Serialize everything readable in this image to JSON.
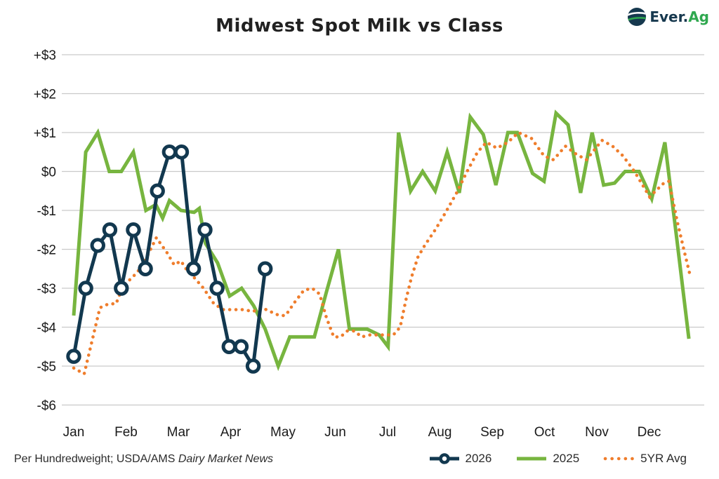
{
  "title": "Midwest Spot Milk vs Class",
  "logo": {
    "brand_prefix": "Ever.",
    "brand_suffix": "Ag"
  },
  "footnote": {
    "plain": "Per Hundredweight; USDA/AMS ",
    "italic": "Dairy Market News"
  },
  "colors": {
    "navy": "#12384f",
    "green": "#77b53f",
    "orange": "#ef7d2c",
    "grid": "#c9c9c9",
    "text": "#1a1a1a",
    "logo_navy": "#16384e",
    "logo_green": "#2fa84f",
    "marker_fill": "#ffffff"
  },
  "chart_data": {
    "type": "line",
    "title": "Midwest Spot Milk vs Class",
    "unit": "US dollars per hundredweight (differential)",
    "grid": "horizontal only",
    "legend_position": "bottom-right",
    "x_axis": {
      "tick_labels": [
        "Jan",
        "Feb",
        "Mar",
        "Apr",
        "May",
        "Jun",
        "Jul",
        "Aug",
        "Sep",
        "Oct",
        "Nov",
        "Dec"
      ],
      "note": "x values below are months, 0 = Jan tick .. 11 = Dec tick"
    },
    "y_axis": {
      "tick_labels": [
        "+$3",
        "+$2",
        "+$1",
        "$0",
        "-$1",
        "-$2",
        "-$3",
        "-$4",
        "-$5",
        "-$6"
      ],
      "tick_values": [
        3,
        2,
        1,
        0,
        -1,
        -2,
        -3,
        -4,
        -5,
        -6
      ],
      "range": [
        -6,
        3
      ]
    },
    "series": [
      {
        "name": "2025",
        "style": "solid",
        "color_key": "green",
        "points": [
          [
            0.0,
            -3.7
          ],
          [
            0.23,
            0.5
          ],
          [
            0.46,
            1.0
          ],
          [
            0.68,
            0.0
          ],
          [
            0.91,
            0.0
          ],
          [
            1.14,
            0.5
          ],
          [
            1.38,
            -1.0
          ],
          [
            1.57,
            -0.85
          ],
          [
            1.7,
            -1.2
          ],
          [
            1.83,
            -0.75
          ],
          [
            2.05,
            -1.0
          ],
          [
            2.3,
            -1.05
          ],
          [
            2.4,
            -0.95
          ],
          [
            2.52,
            -1.85
          ],
          [
            2.75,
            -2.35
          ],
          [
            2.98,
            -3.2
          ],
          [
            3.21,
            -3.0
          ],
          [
            3.44,
            -3.45
          ],
          [
            3.66,
            -4.05
          ],
          [
            3.91,
            -5.0
          ],
          [
            4.13,
            -4.25
          ],
          [
            4.36,
            -4.25
          ],
          [
            4.6,
            -4.25
          ],
          [
            4.83,
            -3.1
          ],
          [
            5.06,
            -2.0
          ],
          [
            5.27,
            -4.05
          ],
          [
            5.5,
            -4.05
          ],
          [
            5.61,
            -4.05
          ],
          [
            5.84,
            -4.2
          ],
          [
            6.01,
            -4.5
          ],
          [
            6.21,
            1.0
          ],
          [
            6.44,
            -0.5
          ],
          [
            6.67,
            0.0
          ],
          [
            6.91,
            -0.5
          ],
          [
            7.14,
            0.5
          ],
          [
            7.37,
            -0.55
          ],
          [
            7.58,
            1.4
          ],
          [
            7.83,
            0.95
          ],
          [
            8.07,
            -0.35
          ],
          [
            8.3,
            1.0
          ],
          [
            8.48,
            1.0
          ],
          [
            8.77,
            -0.05
          ],
          [
            8.99,
            -0.25
          ],
          [
            9.22,
            1.5
          ],
          [
            9.45,
            1.2
          ],
          [
            9.69,
            -0.55
          ],
          [
            9.91,
            1.0
          ],
          [
            10.13,
            -0.35
          ],
          [
            10.34,
            -0.3
          ],
          [
            10.54,
            0.0
          ],
          [
            10.81,
            0.0
          ],
          [
            11.05,
            -0.7
          ],
          [
            11.3,
            0.75
          ],
          [
            11.53,
            -1.75
          ],
          [
            11.76,
            -4.3
          ]
        ]
      },
      {
        "name": "5YR Avg",
        "style": "dotted",
        "color_key": "orange",
        "points": [
          [
            0.0,
            -5.05
          ],
          [
            0.2,
            -5.2
          ],
          [
            0.36,
            -4.3
          ],
          [
            0.5,
            -3.5
          ],
          [
            0.67,
            -3.4
          ],
          [
            0.81,
            -3.4
          ],
          [
            0.91,
            -3.05
          ],
          [
            1.02,
            -2.85
          ],
          [
            1.21,
            -2.6
          ],
          [
            1.34,
            -2.35
          ],
          [
            1.58,
            -1.7
          ],
          [
            1.79,
            -2.1
          ],
          [
            1.92,
            -2.4
          ],
          [
            2.05,
            -2.3
          ],
          [
            2.17,
            -2.55
          ],
          [
            2.32,
            -2.75
          ],
          [
            2.48,
            -3.0
          ],
          [
            2.68,
            -3.4
          ],
          [
            2.86,
            -3.55
          ],
          [
            3.05,
            -3.55
          ],
          [
            3.26,
            -3.55
          ],
          [
            3.42,
            -3.6
          ],
          [
            3.6,
            -3.5
          ],
          [
            3.76,
            -3.6
          ],
          [
            3.93,
            -3.7
          ],
          [
            4.05,
            -3.7
          ],
          [
            4.23,
            -3.35
          ],
          [
            4.4,
            -3.05
          ],
          [
            4.56,
            -3.0
          ],
          [
            4.7,
            -3.15
          ],
          [
            4.83,
            -3.75
          ],
          [
            4.97,
            -4.25
          ],
          [
            5.1,
            -4.25
          ],
          [
            5.23,
            -4.1
          ],
          [
            5.37,
            -4.1
          ],
          [
            5.5,
            -4.25
          ],
          [
            5.66,
            -4.2
          ],
          [
            5.88,
            -4.2
          ],
          [
            6.11,
            -4.2
          ],
          [
            6.24,
            -4.0
          ],
          [
            6.35,
            -3.3
          ],
          [
            6.46,
            -2.7
          ],
          [
            6.58,
            -2.2
          ],
          [
            6.71,
            -1.9
          ],
          [
            6.91,
            -1.5
          ],
          [
            7.11,
            -1.05
          ],
          [
            7.32,
            -0.55
          ],
          [
            7.52,
            0.0
          ],
          [
            7.72,
            0.5
          ],
          [
            7.89,
            0.75
          ],
          [
            8.09,
            0.6
          ],
          [
            8.3,
            0.75
          ],
          [
            8.5,
            1.0
          ],
          [
            8.75,
            0.85
          ],
          [
            8.99,
            0.4
          ],
          [
            9.17,
            0.3
          ],
          [
            9.4,
            0.65
          ],
          [
            9.6,
            0.45
          ],
          [
            9.8,
            0.3
          ],
          [
            10.1,
            0.8
          ],
          [
            10.3,
            0.65
          ],
          [
            10.5,
            0.4
          ],
          [
            10.72,
            0.0
          ],
          [
            11.01,
            -0.65
          ],
          [
            11.28,
            -0.3
          ],
          [
            11.38,
            -0.25
          ],
          [
            11.54,
            -1.3
          ],
          [
            11.68,
            -2.1
          ],
          [
            11.77,
            -2.6
          ]
        ]
      },
      {
        "name": "2026",
        "style": "solid_markers",
        "color_key": "navy",
        "points": [
          [
            0.0,
            -4.75
          ],
          [
            0.23,
            -3.0
          ],
          [
            0.46,
            -1.9
          ],
          [
            0.69,
            -1.5
          ],
          [
            0.91,
            -3.0
          ],
          [
            1.14,
            -1.5
          ],
          [
            1.37,
            -2.5
          ],
          [
            1.6,
            -0.5
          ],
          [
            1.83,
            0.5
          ],
          [
            2.06,
            0.5
          ],
          [
            2.29,
            -2.5
          ],
          [
            2.51,
            -1.5
          ],
          [
            2.74,
            -3.0
          ],
          [
            2.97,
            -4.5
          ],
          [
            3.2,
            -4.5
          ],
          [
            3.43,
            -5.0
          ],
          [
            3.66,
            -2.5
          ]
        ]
      }
    ],
    "legend": [
      "2026",
      "2025",
      "5YR Avg"
    ]
  }
}
